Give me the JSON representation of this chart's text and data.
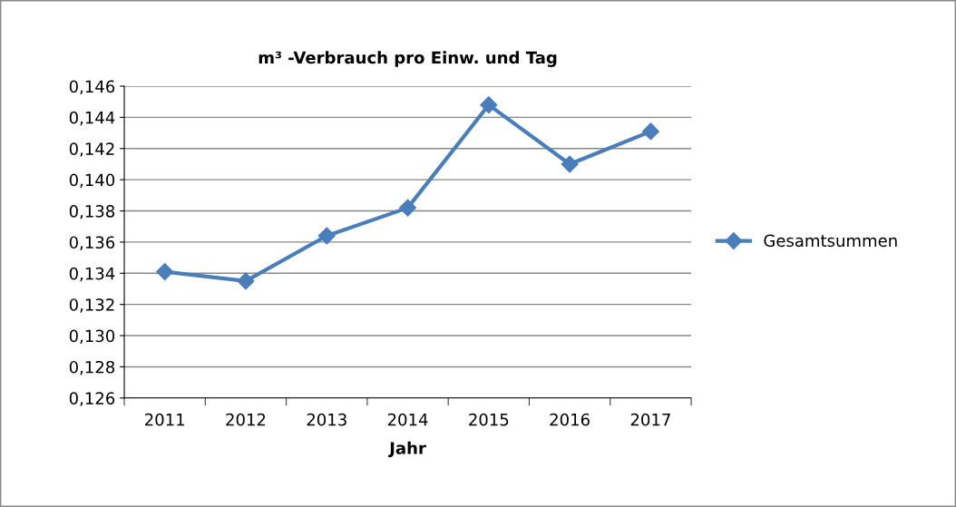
{
  "chart_data": {
    "type": "line",
    "title": "m³ -Verbrauch pro Einw. und Tag",
    "xlabel": "Jahr",
    "categories": [
      "2011",
      "2012",
      "2013",
      "2014",
      "2015",
      "2016",
      "2017"
    ],
    "series": [
      {
        "name": "Gesamtsummen",
        "color": "#4a7ebb",
        "values": [
          0.1341,
          0.1335,
          0.1364,
          0.1382,
          0.1448,
          0.141,
          0.1431
        ]
      }
    ],
    "ylim": [
      0.126,
      0.146
    ],
    "yticks": [
      {
        "value": 0.126,
        "label": "0,126"
      },
      {
        "value": 0.128,
        "label": "0,128"
      },
      {
        "value": 0.13,
        "label": "0,130"
      },
      {
        "value": 0.132,
        "label": "0,132"
      },
      {
        "value": 0.134,
        "label": "0,134"
      },
      {
        "value": 0.136,
        "label": "0,136"
      },
      {
        "value": 0.138,
        "label": "0,138"
      },
      {
        "value": 0.14,
        "label": "0,140"
      },
      {
        "value": 0.142,
        "label": "0,142"
      },
      {
        "value": 0.144,
        "label": "0,144"
      },
      {
        "value": 0.146,
        "label": "0,146"
      }
    ],
    "grid": "y",
    "legend": "right",
    "marker": "diamond",
    "line_style": "solid"
  }
}
